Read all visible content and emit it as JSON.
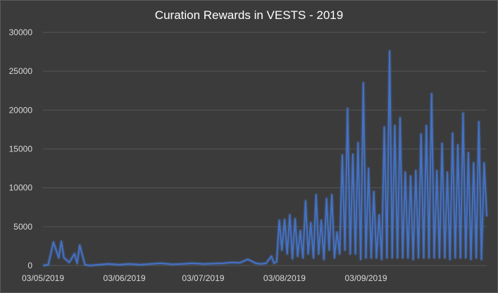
{
  "chart_data": {
    "type": "line",
    "title": "Curation Rewards in VESTS - 2019",
    "xlabel": "",
    "ylabel": "",
    "ylim": [
      0,
      30000
    ],
    "yticks": [
      0,
      5000,
      10000,
      15000,
      20000,
      25000,
      30000
    ],
    "yticklabels": [
      "0",
      "5000",
      "10000",
      "15000",
      "20000",
      "25000",
      "30000"
    ],
    "xlim": [
      "2019-05-03",
      "2019-10-19"
    ],
    "xtick_dates": [
      "2019-05-03",
      "2019-06-03",
      "2019-07-03",
      "2019-08-03",
      "2019-09-03"
    ],
    "xticklabels": [
      "03/05/2019",
      "03/06/2019",
      "03/07/2019",
      "03/08/2019",
      "03/09/2019"
    ],
    "grid": "horizontal",
    "legend": "none",
    "series_color": "#4472c4",
    "series": [
      {
        "x": [
          "2019-05-03",
          "2019-05-05",
          "2019-05-07",
          "2019-05-09",
          "2019-05-10",
          "2019-05-11",
          "2019-05-13",
          "2019-05-15",
          "2019-05-16",
          "2019-05-17",
          "2019-05-19",
          "2019-05-21",
          "2019-05-24",
          "2019-05-28",
          "2019-06-01",
          "2019-06-05",
          "2019-06-09",
          "2019-06-13",
          "2019-06-17",
          "2019-06-21",
          "2019-06-25",
          "2019-06-29",
          "2019-07-03",
          "2019-07-07",
          "2019-07-11",
          "2019-07-14",
          "2019-07-17",
          "2019-07-20",
          "2019-07-23",
          "2019-07-25",
          "2019-07-27",
          "2019-07-29",
          "2019-07-30",
          "2019-07-31",
          "2019-08-01",
          "2019-08-02",
          "2019-08-03",
          "2019-08-04",
          "2019-08-05",
          "2019-08-06",
          "2019-08-07",
          "2019-08-08",
          "2019-08-09",
          "2019-08-10",
          "2019-08-11",
          "2019-08-12",
          "2019-08-13",
          "2019-08-14",
          "2019-08-15",
          "2019-08-16",
          "2019-08-17",
          "2019-08-18",
          "2019-08-19",
          "2019-08-20",
          "2019-08-21",
          "2019-08-22",
          "2019-08-23",
          "2019-08-24",
          "2019-08-25",
          "2019-08-26",
          "2019-08-27",
          "2019-08-28",
          "2019-08-29",
          "2019-08-30",
          "2019-08-31",
          "2019-09-01",
          "2019-09-02",
          "2019-09-03",
          "2019-09-04",
          "2019-09-05",
          "2019-09-06",
          "2019-09-07",
          "2019-09-08",
          "2019-09-09",
          "2019-09-10",
          "2019-09-11",
          "2019-09-12",
          "2019-09-13",
          "2019-09-14",
          "2019-09-15",
          "2019-09-16",
          "2019-09-17",
          "2019-09-18",
          "2019-09-19",
          "2019-09-20",
          "2019-09-21",
          "2019-09-22",
          "2019-09-23",
          "2019-09-24",
          "2019-09-25",
          "2019-09-26",
          "2019-09-27",
          "2019-09-28",
          "2019-09-29",
          "2019-09-30",
          "2019-10-01",
          "2019-10-02",
          "2019-10-03",
          "2019-10-04",
          "2019-10-05",
          "2019-10-06",
          "2019-10-07",
          "2019-10-08",
          "2019-10-09",
          "2019-10-10",
          "2019-10-11",
          "2019-10-12",
          "2019-10-13",
          "2019-10-14",
          "2019-10-15",
          "2019-10-16",
          "2019-10-17",
          "2019-10-18",
          "2019-10-19"
        ],
        "values": [
          0,
          100,
          3000,
          1000,
          3100,
          1000,
          400,
          1500,
          300,
          2600,
          100,
          0,
          100,
          200,
          100,
          200,
          100,
          200,
          300,
          150,
          200,
          300,
          200,
          250,
          300,
          400,
          350,
          800,
          300,
          200,
          300,
          1200,
          300,
          500,
          5800,
          2000,
          5900,
          1500,
          6500,
          900,
          6000,
          1200,
          4500,
          1000,
          8300,
          1500,
          5500,
          1000,
          9100,
          1500,
          5800,
          800,
          8600,
          2000,
          9100,
          1000,
          4300,
          1500,
          14200,
          2000,
          20200,
          1500,
          14300,
          1500,
          15800,
          800,
          23500,
          1000,
          12500,
          1000,
          9500,
          1000,
          6500,
          800,
          17800,
          1000,
          27600,
          1000,
          18000,
          1000,
          19000,
          1000,
          12000,
          1000,
          11500,
          800,
          12200,
          1000,
          16900,
          1000,
          18000,
          1000,
          22100,
          1000,
          12200,
          1000,
          15700,
          1000,
          12000,
          800,
          17000,
          1000,
          15500,
          1000,
          19600,
          1000,
          14500,
          800,
          13200,
          1000,
          18500,
          800,
          13200,
          6300
        ]
      }
    ]
  }
}
